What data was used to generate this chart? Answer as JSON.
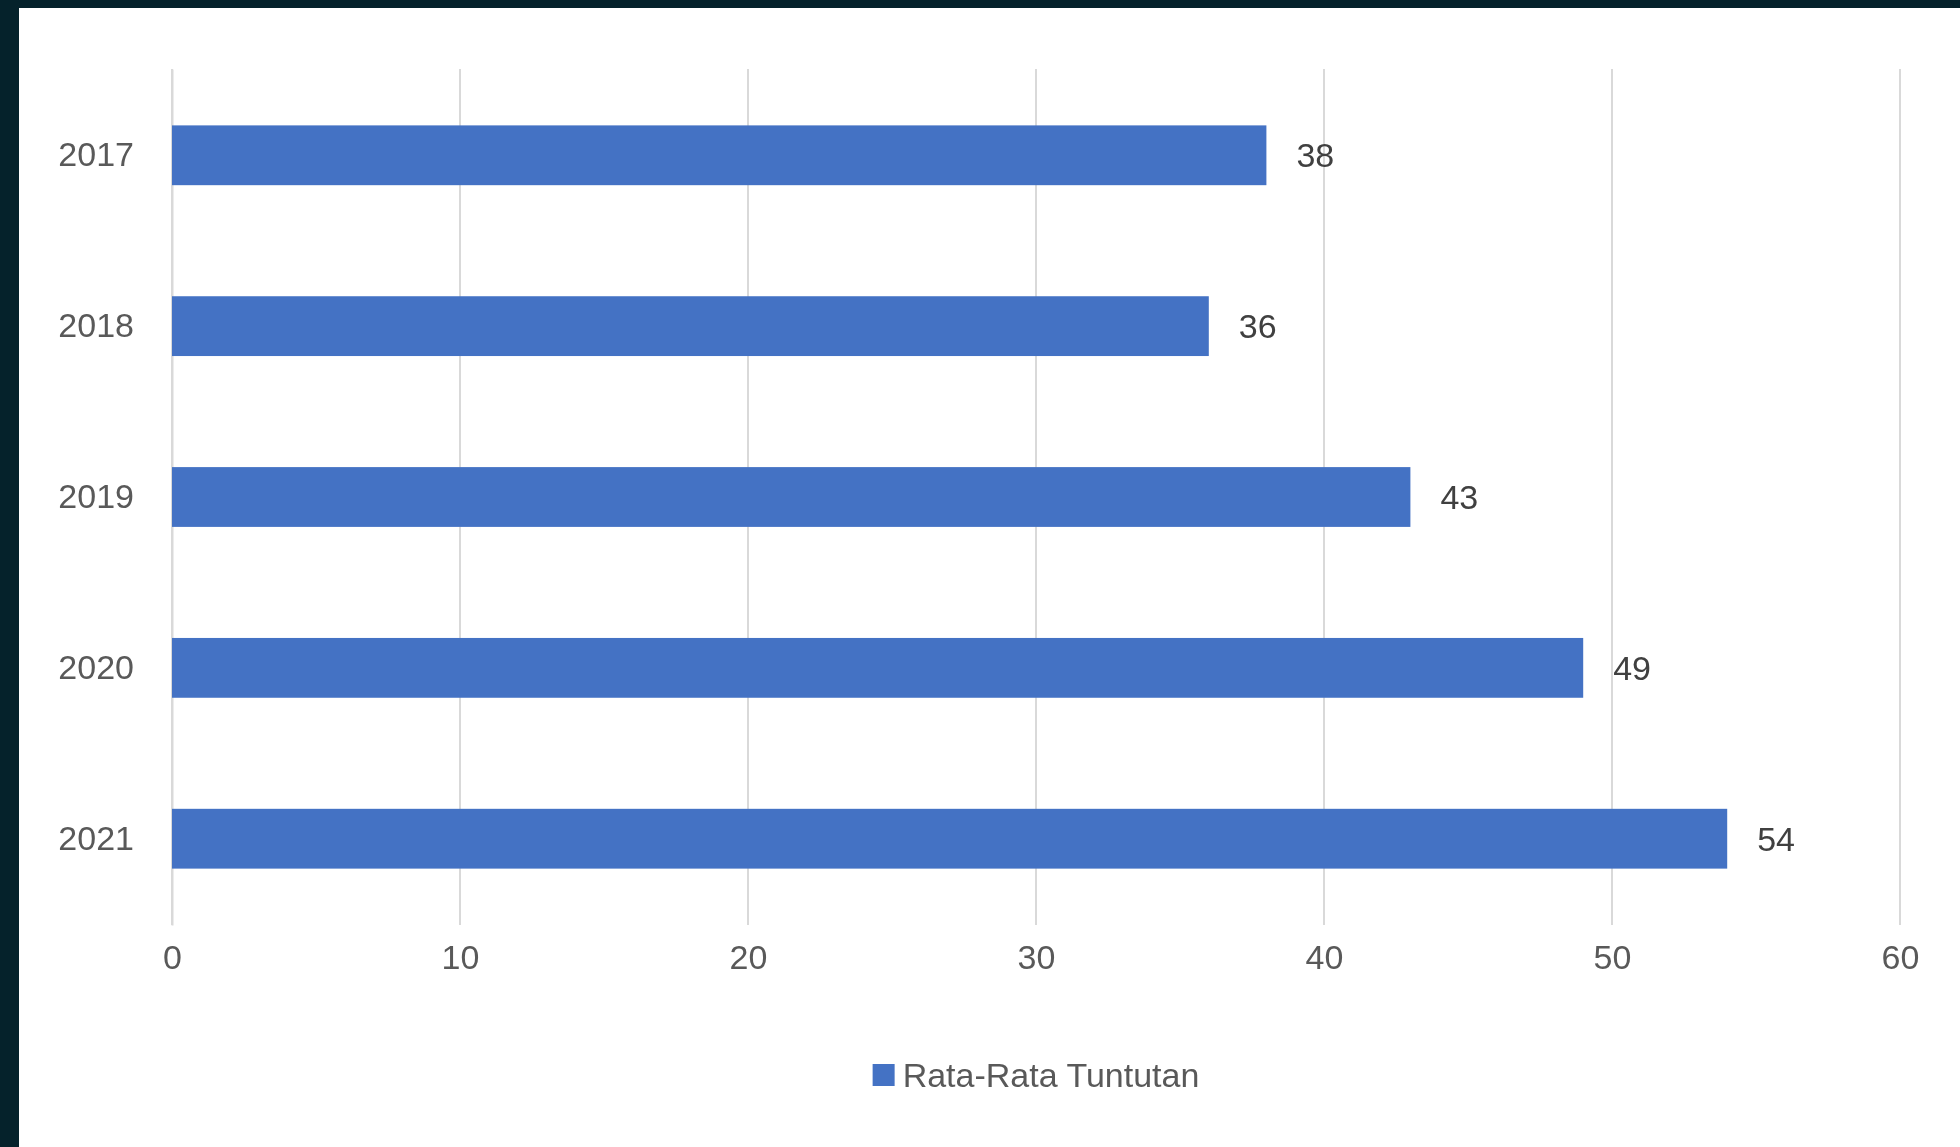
{
  "chart_data": {
    "type": "bar",
    "orientation": "horizontal",
    "categories": [
      "2017",
      "2018",
      "2019",
      "2020",
      "2021"
    ],
    "series": [
      {
        "name": "Rata-Rata Tuntutan",
        "color": "#4472c4",
        "values": [
          38,
          36,
          43,
          49,
          54
        ]
      }
    ],
    "xlim": [
      0,
      60
    ],
    "xticks": [
      0,
      10,
      20,
      30,
      40,
      50,
      60
    ],
    "grid": "x",
    "data_labels": true,
    "legend": "bottom"
  }
}
